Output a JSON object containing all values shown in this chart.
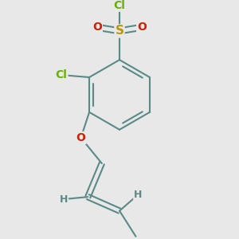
{
  "bg_color": "#e8e8e8",
  "bond_color": "#5a8a88",
  "bond_width": 1.5,
  "atom_colors": {
    "Cl": "#6ab000",
    "S": "#b8980a",
    "O": "#cc2200",
    "H": "#5a8a88"
  },
  "xlim": [
    -1.8,
    2.2
  ],
  "ylim": [
    -2.8,
    2.2
  ],
  "figsize": [
    3.0,
    3.0
  ],
  "dpi": 100
}
